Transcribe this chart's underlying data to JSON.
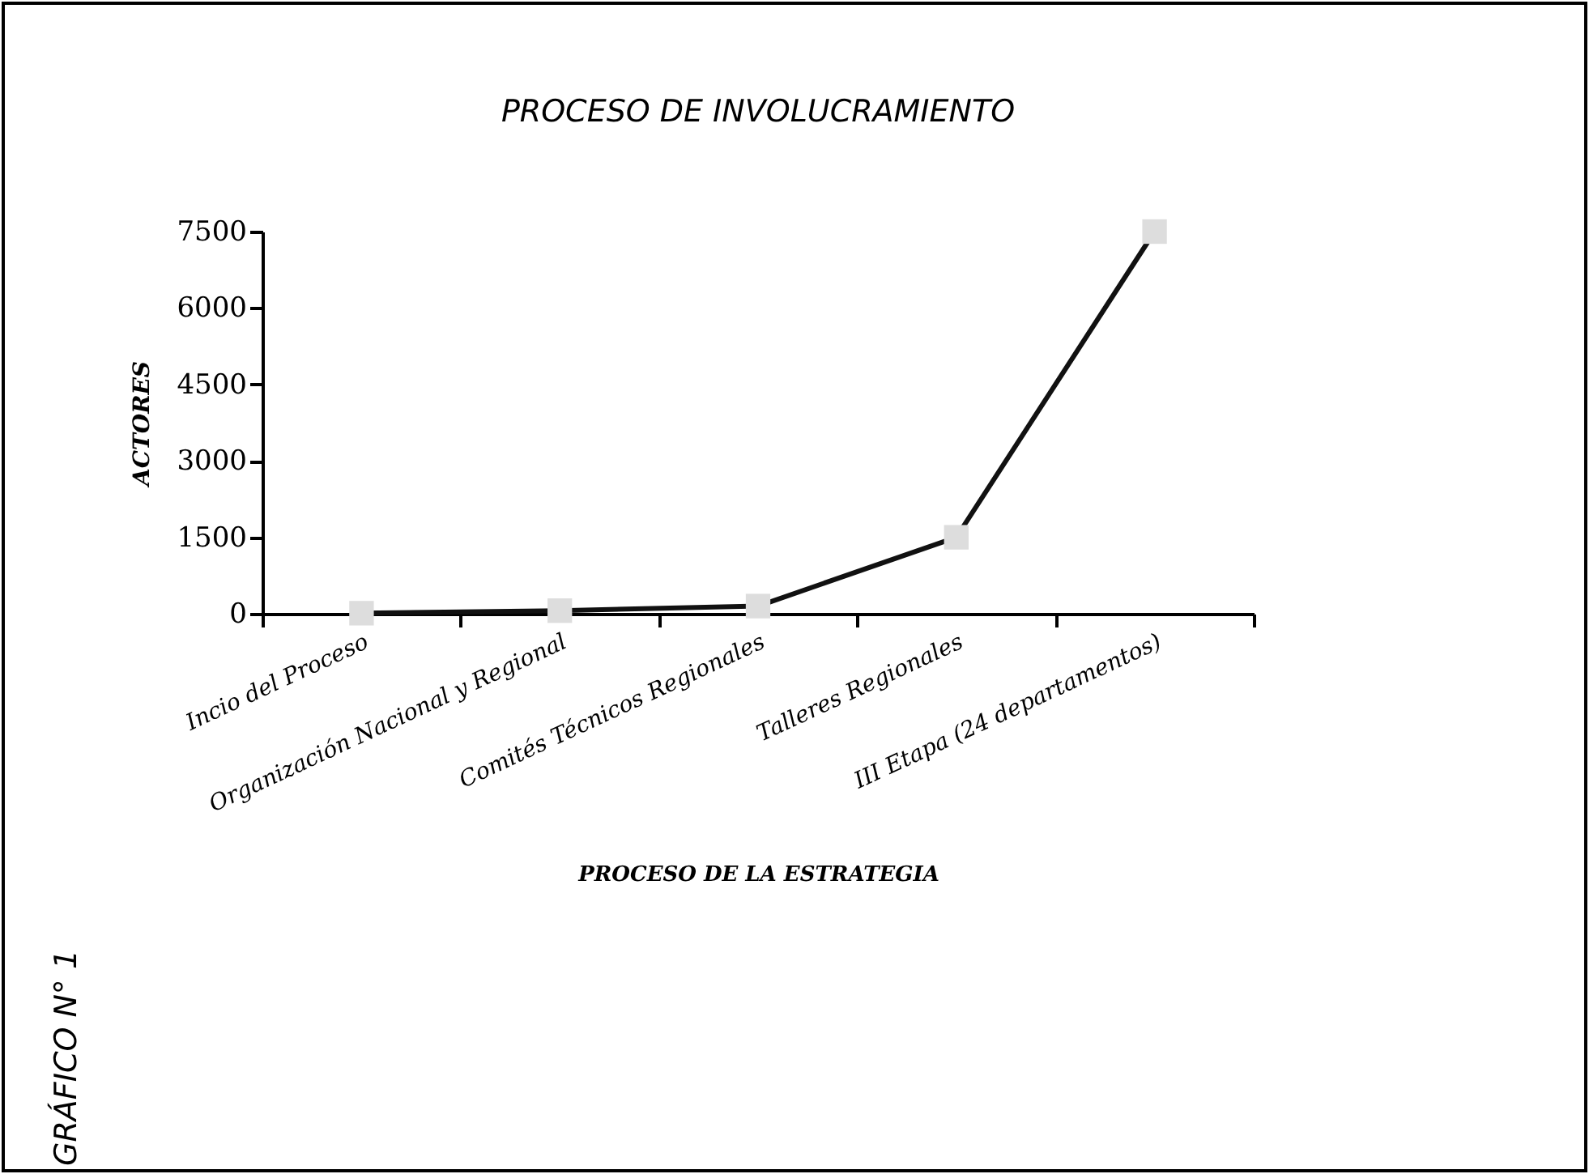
{
  "chart_data": {
    "type": "line",
    "title": "PROCESO DE INVOLUCRAMIENTO",
    "xlabel": "PROCESO DE LA ESTRATEGIA",
    "ylabel": "ACTORES",
    "categories": [
      "Incio del Proceso",
      "Organización Nacional y Regional",
      "Comités Técnicos Regionales",
      "Talleres Regionales",
      "III Etapa (24 departamentos)"
    ],
    "series": [
      {
        "color": "#111111",
        "values": [
          10,
          60,
          150,
          1500,
          7500
        ]
      }
    ],
    "ylim": [
      0,
      7500
    ],
    "yticks": [
      0,
      1500,
      3000,
      4500,
      6000,
      7500
    ],
    "grid": false,
    "legend": false,
    "marker": "square",
    "line_style": "solid",
    "annotations": [
      "GRÁFICO N° 1"
    ]
  }
}
